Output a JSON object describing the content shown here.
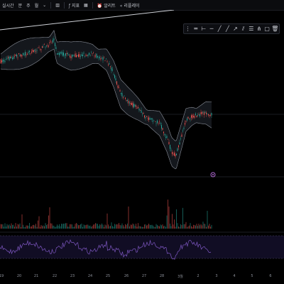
{
  "toolbar": {
    "interval_label": "실시간",
    "period_1": "분",
    "period_2": "주",
    "period_3": "월",
    "indicators_label": "지표",
    "alert_label": "알리트",
    "replay_label": "리플레이"
  },
  "x_axis_labels": [
    "19",
    "20",
    "21",
    "22",
    "23",
    "24",
    "25",
    "26",
    "27",
    "28",
    "3월",
    "2",
    "3",
    "4",
    "5",
    "6"
  ],
  "colors": {
    "background": "#000000",
    "candle_up": "#26a69a",
    "candle_down": "#ef5350",
    "bollinger_band": "#8a8f99",
    "rsi_line": "#7e57c2",
    "rsi_band": "#1a1433",
    "marker": "#b36bd6"
  },
  "drawing_tools": [
    "horizontal-line-icon",
    "horizontal-ray-icon",
    "extended-line-icon",
    "trend-line-icon",
    "ray-icon",
    "arrow-icon",
    "parallel-channel-icon",
    "fib-retracement-icon",
    "pitchfork-icon",
    "price-range-icon",
    "trash-icon"
  ],
  "overlay_marker_icon": "settings-circle-icon"
}
